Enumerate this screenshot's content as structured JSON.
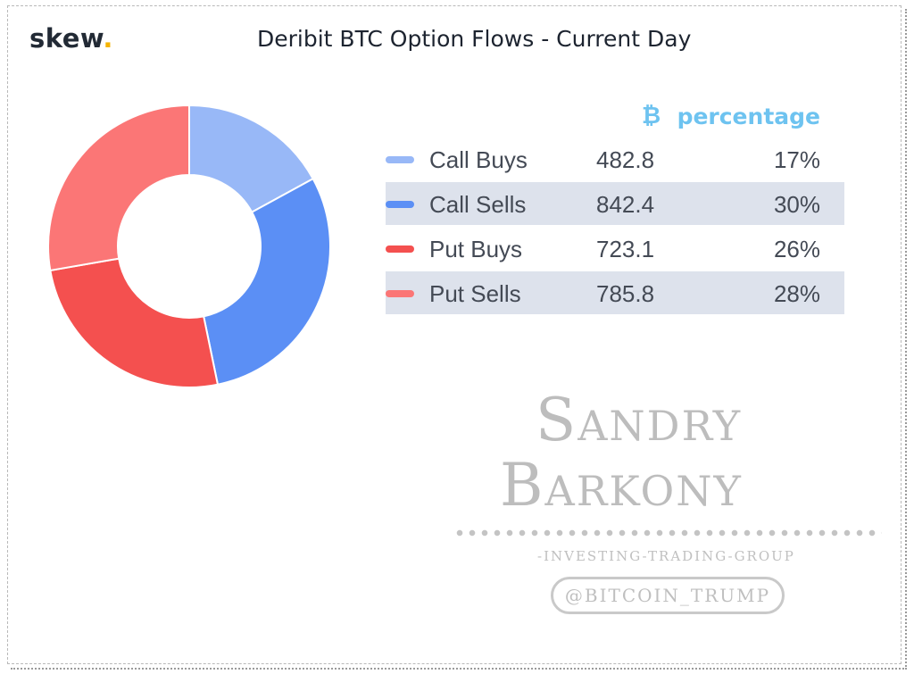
{
  "brand": {
    "name": "skew",
    "dot": "."
  },
  "chart_data": {
    "type": "pie",
    "title": "Deribit BTC Option Flows - Current Day",
    "donut": true,
    "columns": {
      "value_header": "₿",
      "percent_header": "percentage"
    },
    "series": [
      {
        "name": "Call Buys",
        "value": 482.8,
        "value_text": "482.8",
        "percent": 17,
        "percent_text": "17%",
        "color": "#98b8f7"
      },
      {
        "name": "Call Sells",
        "value": 842.4,
        "value_text": "842.4",
        "percent": 30,
        "percent_text": "30%",
        "color": "#5b8ff5"
      },
      {
        "name": "Put Buys",
        "value": 723.1,
        "value_text": "723.1",
        "percent": 26,
        "percent_text": "26%",
        "color": "#f4504f"
      },
      {
        "name": "Put Sells",
        "value": 785.8,
        "value_text": "785.8",
        "percent": 28,
        "percent_text": "28%",
        "color": "#fb7676"
      }
    ]
  },
  "watermark": {
    "line1": "Sandry",
    "line2": "Barkony",
    "subtitle": "-INVESTING-TRADING-GROUP",
    "handle": "@BITCOIN_TRUMP"
  }
}
